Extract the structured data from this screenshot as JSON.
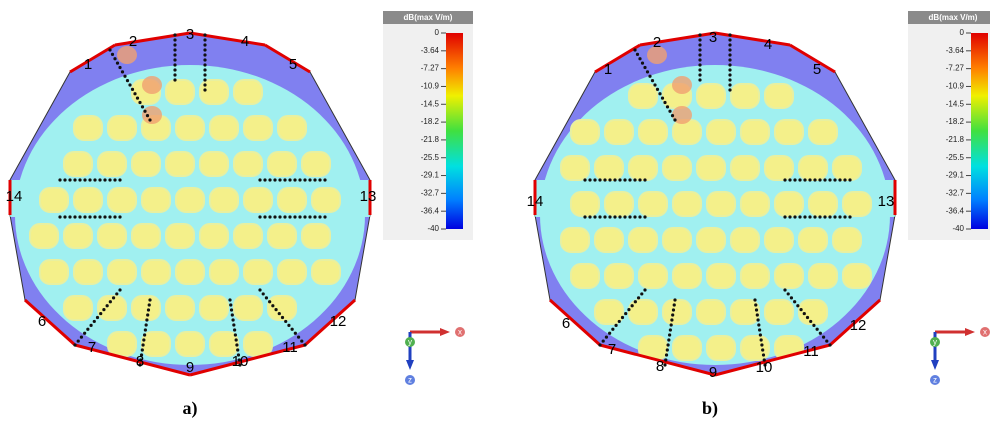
{
  "panels": [
    {
      "label": "a)",
      "ports": [
        "1",
        "2",
        "3",
        "4",
        "5",
        "6",
        "7",
        "8",
        "9",
        "10",
        "11",
        "12",
        "13",
        "14"
      ],
      "colorbar": {
        "title": "dB(max V/m)",
        "ticks": [
          "0",
          "-3.64",
          "-7.27",
          "-10.9",
          "-14.5",
          "-18.2",
          "-21.8",
          "-25.5",
          "-29.1",
          "-32.7",
          "-36.4",
          "-40"
        ]
      },
      "axes": [
        "x",
        "y",
        "z"
      ]
    },
    {
      "label": "b)",
      "ports": [
        "1",
        "2",
        "3",
        "4",
        "5",
        "6",
        "7",
        "8",
        "9",
        "10",
        "11",
        "12",
        "13",
        "14"
      ],
      "colorbar": {
        "title": "dB(max V/m)",
        "ticks": [
          "0",
          "-3.64",
          "-7.27",
          "-10.9",
          "-14.5",
          "-18.2",
          "-21.8",
          "-25.5",
          "-29.1",
          "-32.7",
          "-36.4",
          "-40"
        ]
      },
      "axes": [
        "x",
        "y",
        "z"
      ]
    }
  ]
}
